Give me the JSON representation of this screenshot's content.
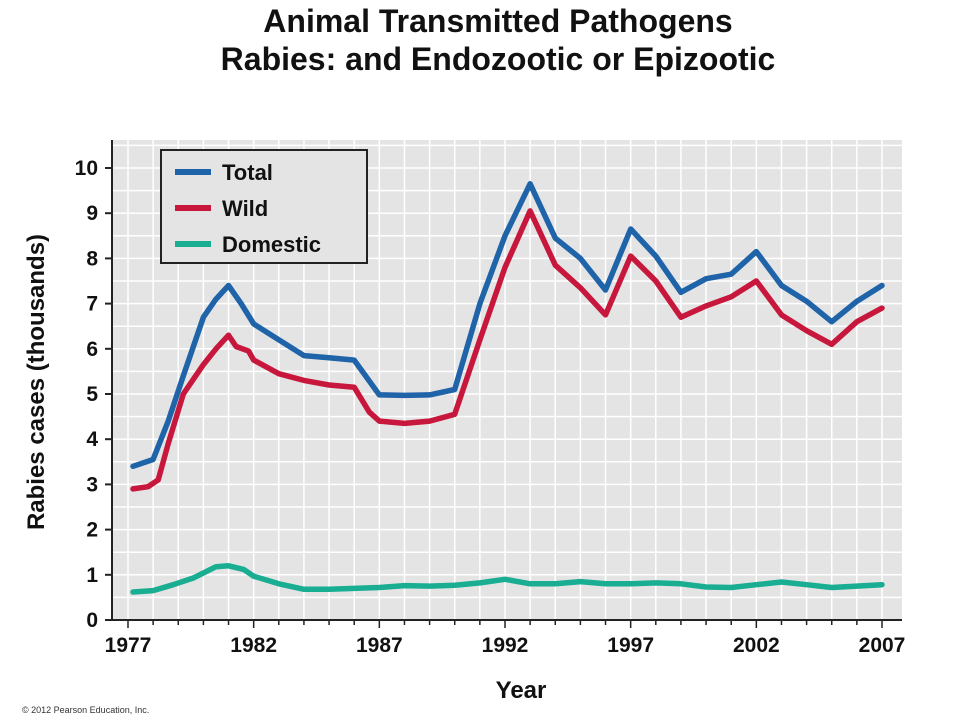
{
  "title_line1": "Animal Transmitted Pathogens",
  "title_line2": "Rabies: and Endozootic or Epizootic",
  "copyright": "© 2012 Pearson Education, Inc.",
  "chart_data": {
    "type": "line",
    "xlabel": "Year",
    "ylabel": "Rabies cases (thousands)",
    "xlim": [
      1977,
      2007
    ],
    "ylim": [
      0,
      10
    ],
    "x_ticks": [
      1977,
      1982,
      1987,
      1992,
      1997,
      2002,
      2007
    ],
    "y_ticks": [
      0,
      1,
      2,
      3,
      4,
      5,
      6,
      7,
      8,
      9,
      10
    ],
    "grid": true,
    "legend_position": "top-left",
    "background": "#e4e4e4",
    "series": [
      {
        "name": "Total",
        "color": "#1f63a8",
        "points": [
          [
            1977.2,
            3.4
          ],
          [
            1978,
            3.55
          ],
          [
            1978.6,
            4.4
          ],
          [
            1979.2,
            5.4
          ],
          [
            1980,
            6.7
          ],
          [
            1980.5,
            7.1
          ],
          [
            1981,
            7.4
          ],
          [
            1981.5,
            7.0
          ],
          [
            1982,
            6.55
          ],
          [
            1983,
            6.2
          ],
          [
            1984,
            5.85
          ],
          [
            1985,
            5.8
          ],
          [
            1986,
            5.75
          ],
          [
            1987,
            4.98
          ],
          [
            1988,
            4.97
          ],
          [
            1989,
            4.98
          ],
          [
            1990,
            5.1
          ],
          [
            1991,
            7.0
          ],
          [
            1992,
            8.5
          ],
          [
            1993,
            9.65
          ],
          [
            1994,
            8.45
          ],
          [
            1995,
            8.0
          ],
          [
            1996,
            7.3
          ],
          [
            1997,
            8.65
          ],
          [
            1998,
            8.05
          ],
          [
            1999,
            7.25
          ],
          [
            2000,
            7.55
          ],
          [
            2001,
            7.65
          ],
          [
            2002,
            8.15
          ],
          [
            2003,
            7.4
          ],
          [
            2004,
            7.05
          ],
          [
            2005,
            6.6
          ],
          [
            2006,
            7.05
          ],
          [
            2007,
            7.4
          ]
        ]
      },
      {
        "name": "Wild",
        "color": "#c8173c",
        "points": [
          [
            1977.2,
            2.9
          ],
          [
            1977.8,
            2.95
          ],
          [
            1978.2,
            3.1
          ],
          [
            1978.6,
            3.9
          ],
          [
            1979.2,
            5.0
          ],
          [
            1980,
            5.65
          ],
          [
            1980.5,
            6.0
          ],
          [
            1981,
            6.3
          ],
          [
            1981.3,
            6.05
          ],
          [
            1981.8,
            5.95
          ],
          [
            1982,
            5.75
          ],
          [
            1983,
            5.45
          ],
          [
            1984,
            5.3
          ],
          [
            1985,
            5.2
          ],
          [
            1986,
            5.15
          ],
          [
            1986.6,
            4.6
          ],
          [
            1987,
            4.4
          ],
          [
            1988,
            4.35
          ],
          [
            1989,
            4.4
          ],
          [
            1990,
            4.55
          ],
          [
            1991,
            6.2
          ],
          [
            1992,
            7.8
          ],
          [
            1993,
            9.05
          ],
          [
            1994,
            7.85
          ],
          [
            1995,
            7.35
          ],
          [
            1996,
            6.75
          ],
          [
            1997,
            8.05
          ],
          [
            1998,
            7.5
          ],
          [
            1999,
            6.7
          ],
          [
            2000,
            6.95
          ],
          [
            2001,
            7.15
          ],
          [
            2002,
            7.5
          ],
          [
            2003,
            6.75
          ],
          [
            2004,
            6.4
          ],
          [
            2005,
            6.1
          ],
          [
            2006,
            6.6
          ],
          [
            2007,
            6.9
          ]
        ]
      },
      {
        "name": "Domestic",
        "color": "#19ad92",
        "points": [
          [
            1977.2,
            0.62
          ],
          [
            1978,
            0.65
          ],
          [
            1978.8,
            0.78
          ],
          [
            1979.6,
            0.93
          ],
          [
            1980.5,
            1.18
          ],
          [
            1981,
            1.2
          ],
          [
            1981.6,
            1.12
          ],
          [
            1982,
            0.97
          ],
          [
            1983,
            0.8
          ],
          [
            1984,
            0.68
          ],
          [
            1985,
            0.68
          ],
          [
            1986,
            0.7
          ],
          [
            1987,
            0.72
          ],
          [
            1988,
            0.76
          ],
          [
            1989,
            0.75
          ],
          [
            1990,
            0.77
          ],
          [
            1991,
            0.82
          ],
          [
            1992,
            0.9
          ],
          [
            1993,
            0.8
          ],
          [
            1994,
            0.8
          ],
          [
            1995,
            0.85
          ],
          [
            1996,
            0.8
          ],
          [
            1997,
            0.8
          ],
          [
            1998,
            0.82
          ],
          [
            1999,
            0.8
          ],
          [
            2000,
            0.73
          ],
          [
            2001,
            0.72
          ],
          [
            2002,
            0.78
          ],
          [
            2003,
            0.84
          ],
          [
            2004,
            0.78
          ],
          [
            2005,
            0.72
          ],
          [
            2006,
            0.75
          ],
          [
            2007,
            0.78
          ]
        ]
      }
    ]
  }
}
